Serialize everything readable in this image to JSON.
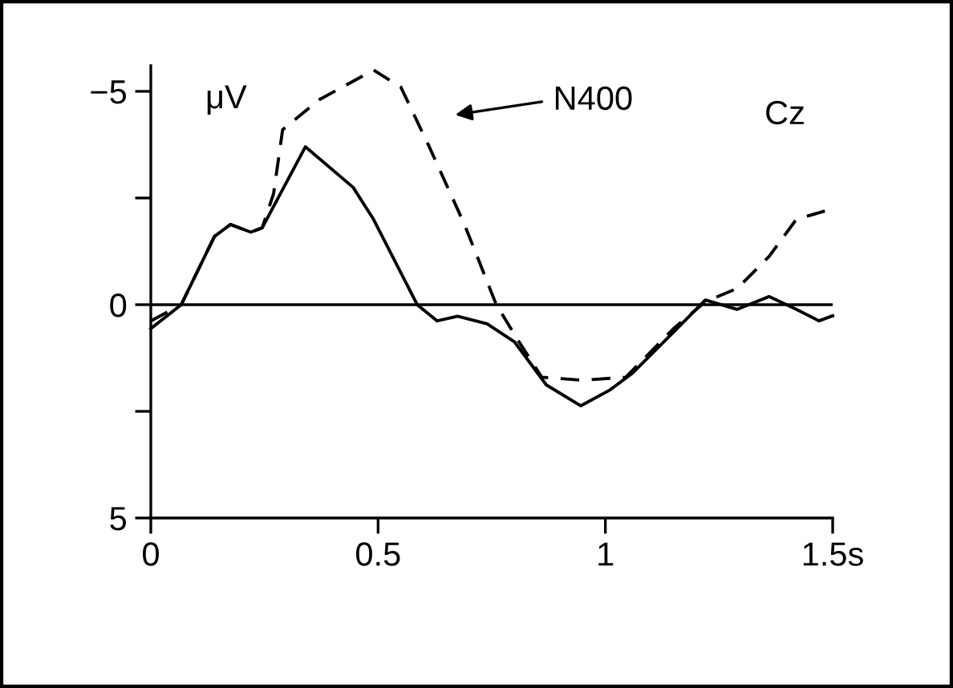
{
  "chart_data": {
    "type": "line",
    "ylabel": "μV",
    "series": [
      {
        "color": "#000000",
        "line_style": "solid",
        "x": [
          0,
          0.067,
          0.14,
          0.175,
          0.22,
          0.245,
          0.34,
          0.445,
          0.49,
          0.586,
          0.63,
          0.675,
          0.74,
          0.8,
          0.87,
          0.946,
          1.01,
          1.06,
          1.15,
          1.22,
          1.29,
          1.36,
          1.42,
          1.47,
          1.5
        ],
        "values": [
          0.56,
          0,
          -1.6,
          -1.88,
          -1.7,
          -1.8,
          -3.7,
          -2.75,
          -2.0,
          0,
          0.38,
          0.27,
          0.45,
          0.87,
          1.88,
          2.37,
          2.0,
          1.6,
          0.64,
          -0.11,
          0.11,
          -0.19,
          0.11,
          0.38,
          0.26
        ]
      },
      {
        "color": "#000000",
        "line_style": "dashed",
        "x": [
          0,
          0.067,
          0.14,
          0.175,
          0.22,
          0.245,
          0.27,
          0.29,
          0.37,
          0.49,
          0.55,
          0.61,
          0.69,
          0.76,
          0.81,
          0.86,
          0.95,
          1.045,
          1.15,
          1.22,
          1.29,
          1.36,
          1.42,
          1.5
        ],
        "values": [
          0.38,
          0,
          -1.6,
          -1.88,
          -1.7,
          -1.8,
          -2.6,
          -4.1,
          -4.8,
          -5.5,
          -5.1,
          -3.76,
          -1.88,
          0,
          0.87,
          1.7,
          1.77,
          1.7,
          0.56,
          -0.07,
          -0.38,
          -1.13,
          -2.0,
          -2.25
        ]
      }
    ],
    "xlim": [
      0,
      1.5
    ],
    "xticks": [
      0,
      0.5,
      1,
      {
        "value": 1.5,
        "label": "1.5s"
      }
    ],
    "ylim": [
      5,
      -5.6
    ],
    "yticks": [
      {
        "value": -5,
        "label": "−5"
      },
      {
        "value": -2.5,
        "label": null
      },
      0,
      {
        "value": 2.5,
        "label": null
      },
      5
    ],
    "ref_lines": [
      {
        "axis": "y",
        "value": 0,
        "color": "#000000",
        "line_style": "solid"
      }
    ],
    "annotations": [
      "N400",
      "Cz"
    ],
    "grid": false,
    "legend": false
  }
}
